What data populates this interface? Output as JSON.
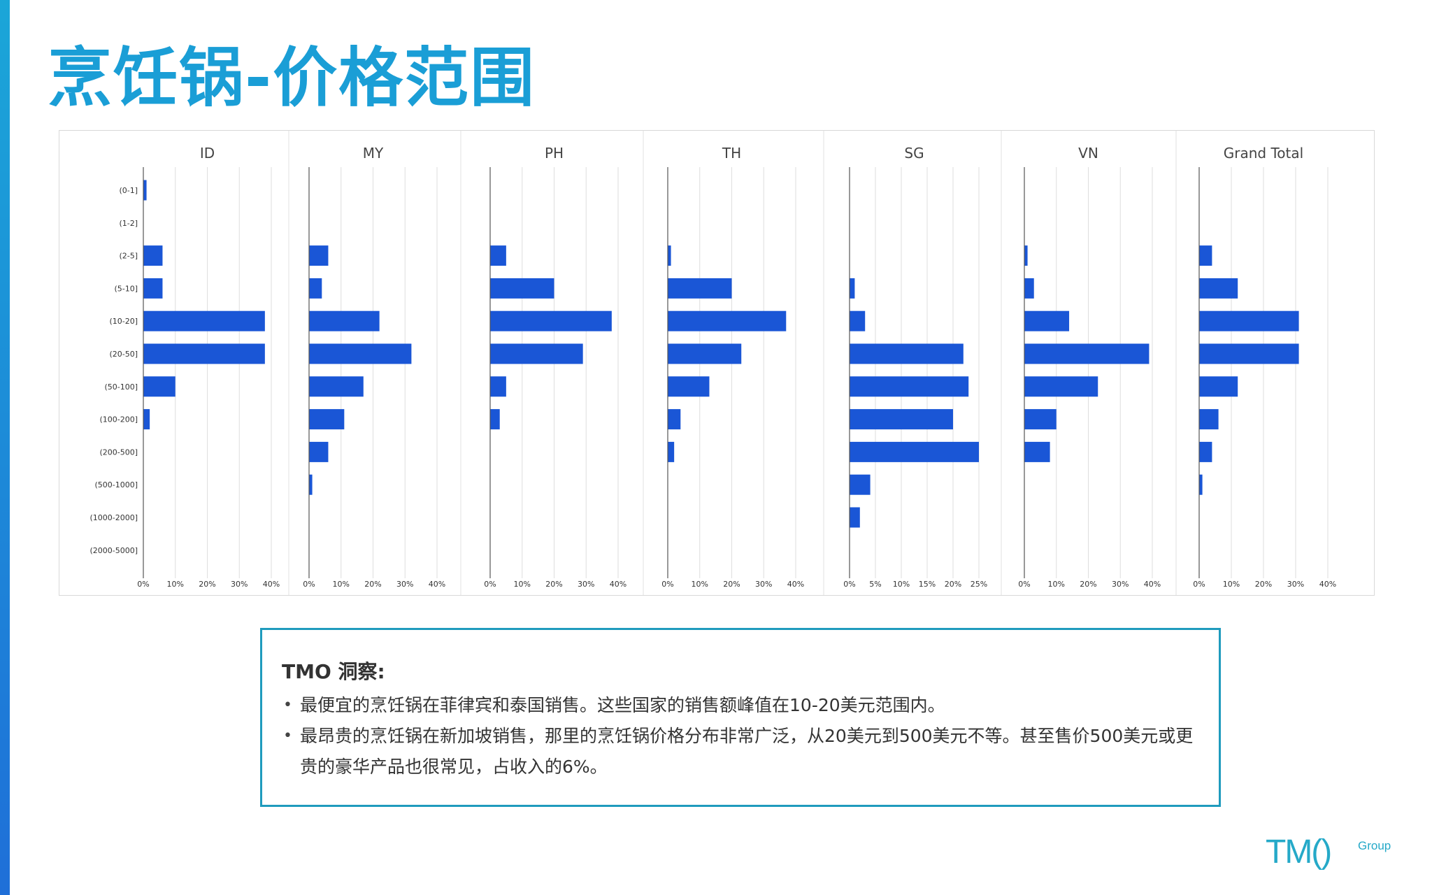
{
  "page": {
    "title": "烹饪锅-价格范围"
  },
  "insight": {
    "title": "TMO 洞察:",
    "bullets": [
      "最便宜的烹饪锅在菲律宾和泰国销售。这些国家的销售额峰值在10-20美元范围内。",
      "最昂贵的烹饪锅在新加坡销售，那里的烹饪锅价格分布非常广泛，从20美元到500美元不等。甚至售价500美元或更贵的豪华产品也很常见，占收入的6%。"
    ]
  },
  "logo": {
    "main": "TM()",
    "sub": "Group"
  },
  "colors": {
    "accent": "#1a9ed6",
    "bar": "#1a56d6",
    "box_border": "#1f9bbd"
  },
  "chart_data": {
    "type": "bar",
    "orientation": "horizontal",
    "categories": [
      "(0-1]",
      "(1-2]",
      "(2-5]",
      "(5-10]",
      "(10-20]",
      "(20-50]",
      "(50-100]",
      "(100-200]",
      "(200-500]",
      "(500-1000]",
      "(1000-2000]",
      "(2000-5000]"
    ],
    "grid": true,
    "panels": [
      {
        "name": "ID",
        "values": [
          1,
          0,
          6,
          6,
          38,
          38,
          10,
          2,
          0,
          0,
          0,
          0
        ],
        "xlim": [
          0,
          40
        ],
        "ticks": [
          0,
          10,
          20,
          30,
          40
        ],
        "tick_labels": [
          "0%",
          "10%",
          "20%",
          "30%",
          "40%"
        ]
      },
      {
        "name": "MY",
        "values": [
          0,
          0,
          6,
          4,
          22,
          32,
          17,
          11,
          6,
          1,
          0,
          0
        ],
        "xlim": [
          0,
          40
        ],
        "ticks": [
          0,
          10,
          20,
          30,
          40
        ],
        "tick_labels": [
          "0%",
          "10%",
          "20%",
          "30%",
          "40%"
        ]
      },
      {
        "name": "PH",
        "values": [
          0,
          0,
          5,
          20,
          38,
          29,
          5,
          3,
          0,
          0,
          0,
          0
        ],
        "xlim": [
          0,
          40
        ],
        "ticks": [
          0,
          10,
          20,
          30,
          40
        ],
        "tick_labels": [
          "0%",
          "10%",
          "20%",
          "30%",
          "40%"
        ]
      },
      {
        "name": "TH",
        "values": [
          0,
          0,
          1,
          20,
          37,
          23,
          13,
          4,
          2,
          0,
          0,
          0
        ],
        "xlim": [
          0,
          40
        ],
        "ticks": [
          0,
          10,
          20,
          30,
          40
        ],
        "tick_labels": [
          "0%",
          "10%",
          "20%",
          "30%",
          "40%"
        ]
      },
      {
        "name": "SG",
        "values": [
          0,
          0,
          0,
          1,
          3,
          22,
          23,
          20,
          25,
          4,
          2,
          0
        ],
        "xlim": [
          0,
          25
        ],
        "ticks": [
          0,
          5,
          10,
          15,
          20,
          25
        ],
        "tick_labels": [
          "0%",
          "5%",
          "10%",
          "15%",
          "20%",
          "25%"
        ]
      },
      {
        "name": "VN",
        "values": [
          0,
          0,
          1,
          3,
          14,
          39,
          23,
          10,
          8,
          0,
          0,
          0
        ],
        "xlim": [
          0,
          40
        ],
        "ticks": [
          0,
          10,
          20,
          30,
          40
        ],
        "tick_labels": [
          "0%",
          "10%",
          "20%",
          "30%",
          "40%"
        ]
      },
      {
        "name": "Grand Total",
        "values": [
          0,
          0,
          4,
          12,
          31,
          31,
          12,
          6,
          4,
          1,
          0,
          0
        ],
        "xlim": [
          0,
          40
        ],
        "ticks": [
          0,
          10,
          20,
          30,
          40
        ],
        "tick_labels": [
          "0%",
          "10%",
          "20%",
          "30%",
          "40%"
        ]
      }
    ]
  }
}
